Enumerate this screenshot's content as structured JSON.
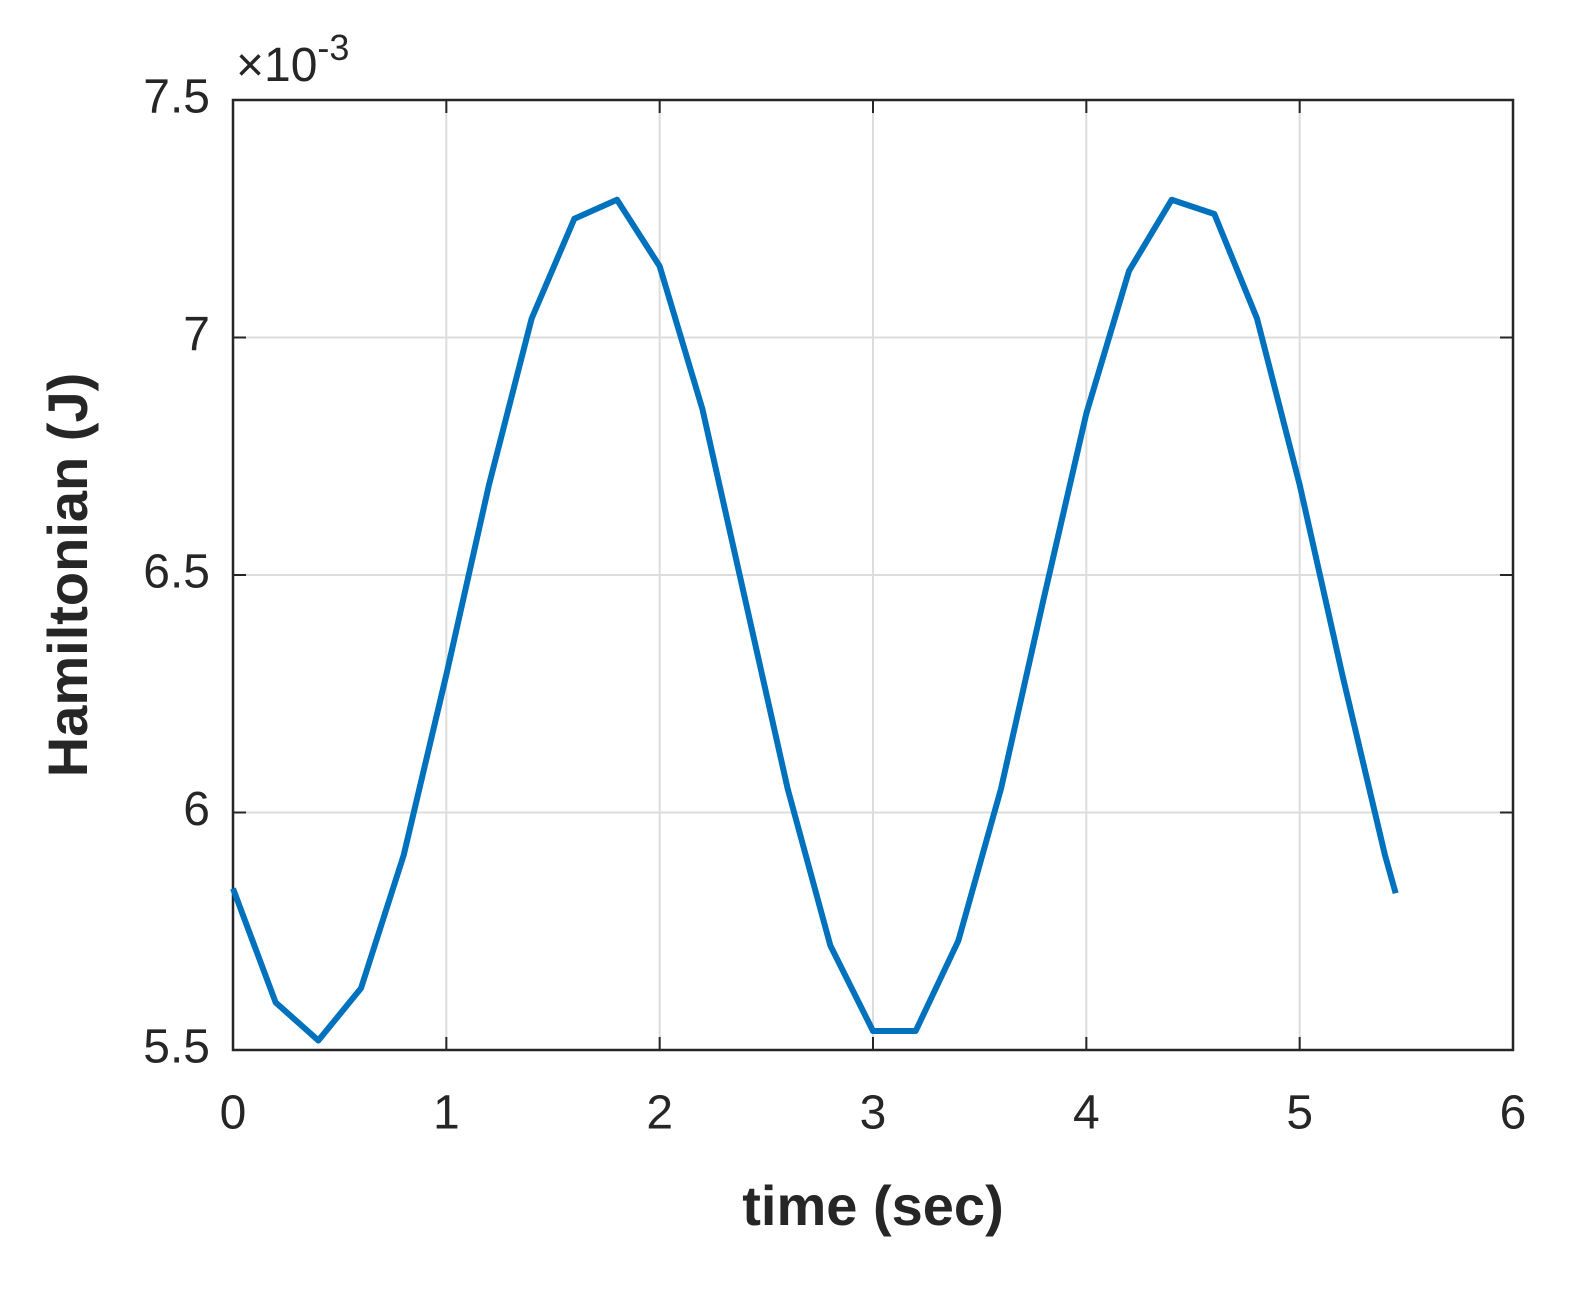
{
  "chart_data": {
    "type": "line",
    "xlabel": "time (sec)",
    "ylabel": "Hamiltonian (J)",
    "y_multiplier": {
      "base": "×10",
      "exponent": "-3"
    },
    "x": [
      0,
      0.2,
      0.4,
      0.6,
      0.8,
      1.0,
      1.2,
      1.4,
      1.6,
      1.8,
      2.0,
      2.2,
      2.4,
      2.6,
      2.8,
      3.0,
      3.2,
      3.4,
      3.6,
      3.8,
      4.0,
      4.2,
      4.4,
      4.6,
      4.8,
      5.0,
      5.2,
      5.4,
      5.45
    ],
    "series": [
      {
        "color": "#0072bd",
        "values": [
          5.84,
          5.6,
          5.52,
          5.63,
          5.91,
          6.29,
          6.69,
          7.04,
          7.25,
          7.29,
          7.15,
          6.85,
          6.45,
          6.05,
          5.72,
          5.54,
          5.54,
          5.73,
          6.05,
          6.45,
          6.84,
          7.14,
          7.29,
          7.26,
          7.04,
          6.69,
          6.29,
          5.91,
          5.83
        ]
      }
    ],
    "xlim": [
      0,
      6
    ],
    "xticks": [
      0,
      1,
      2,
      3,
      4,
      5,
      6
    ],
    "ylim": [
      5.5,
      7.5
    ],
    "yticks": [
      5.5,
      6,
      6.5,
      7,
      7.5
    ],
    "grid": true
  }
}
